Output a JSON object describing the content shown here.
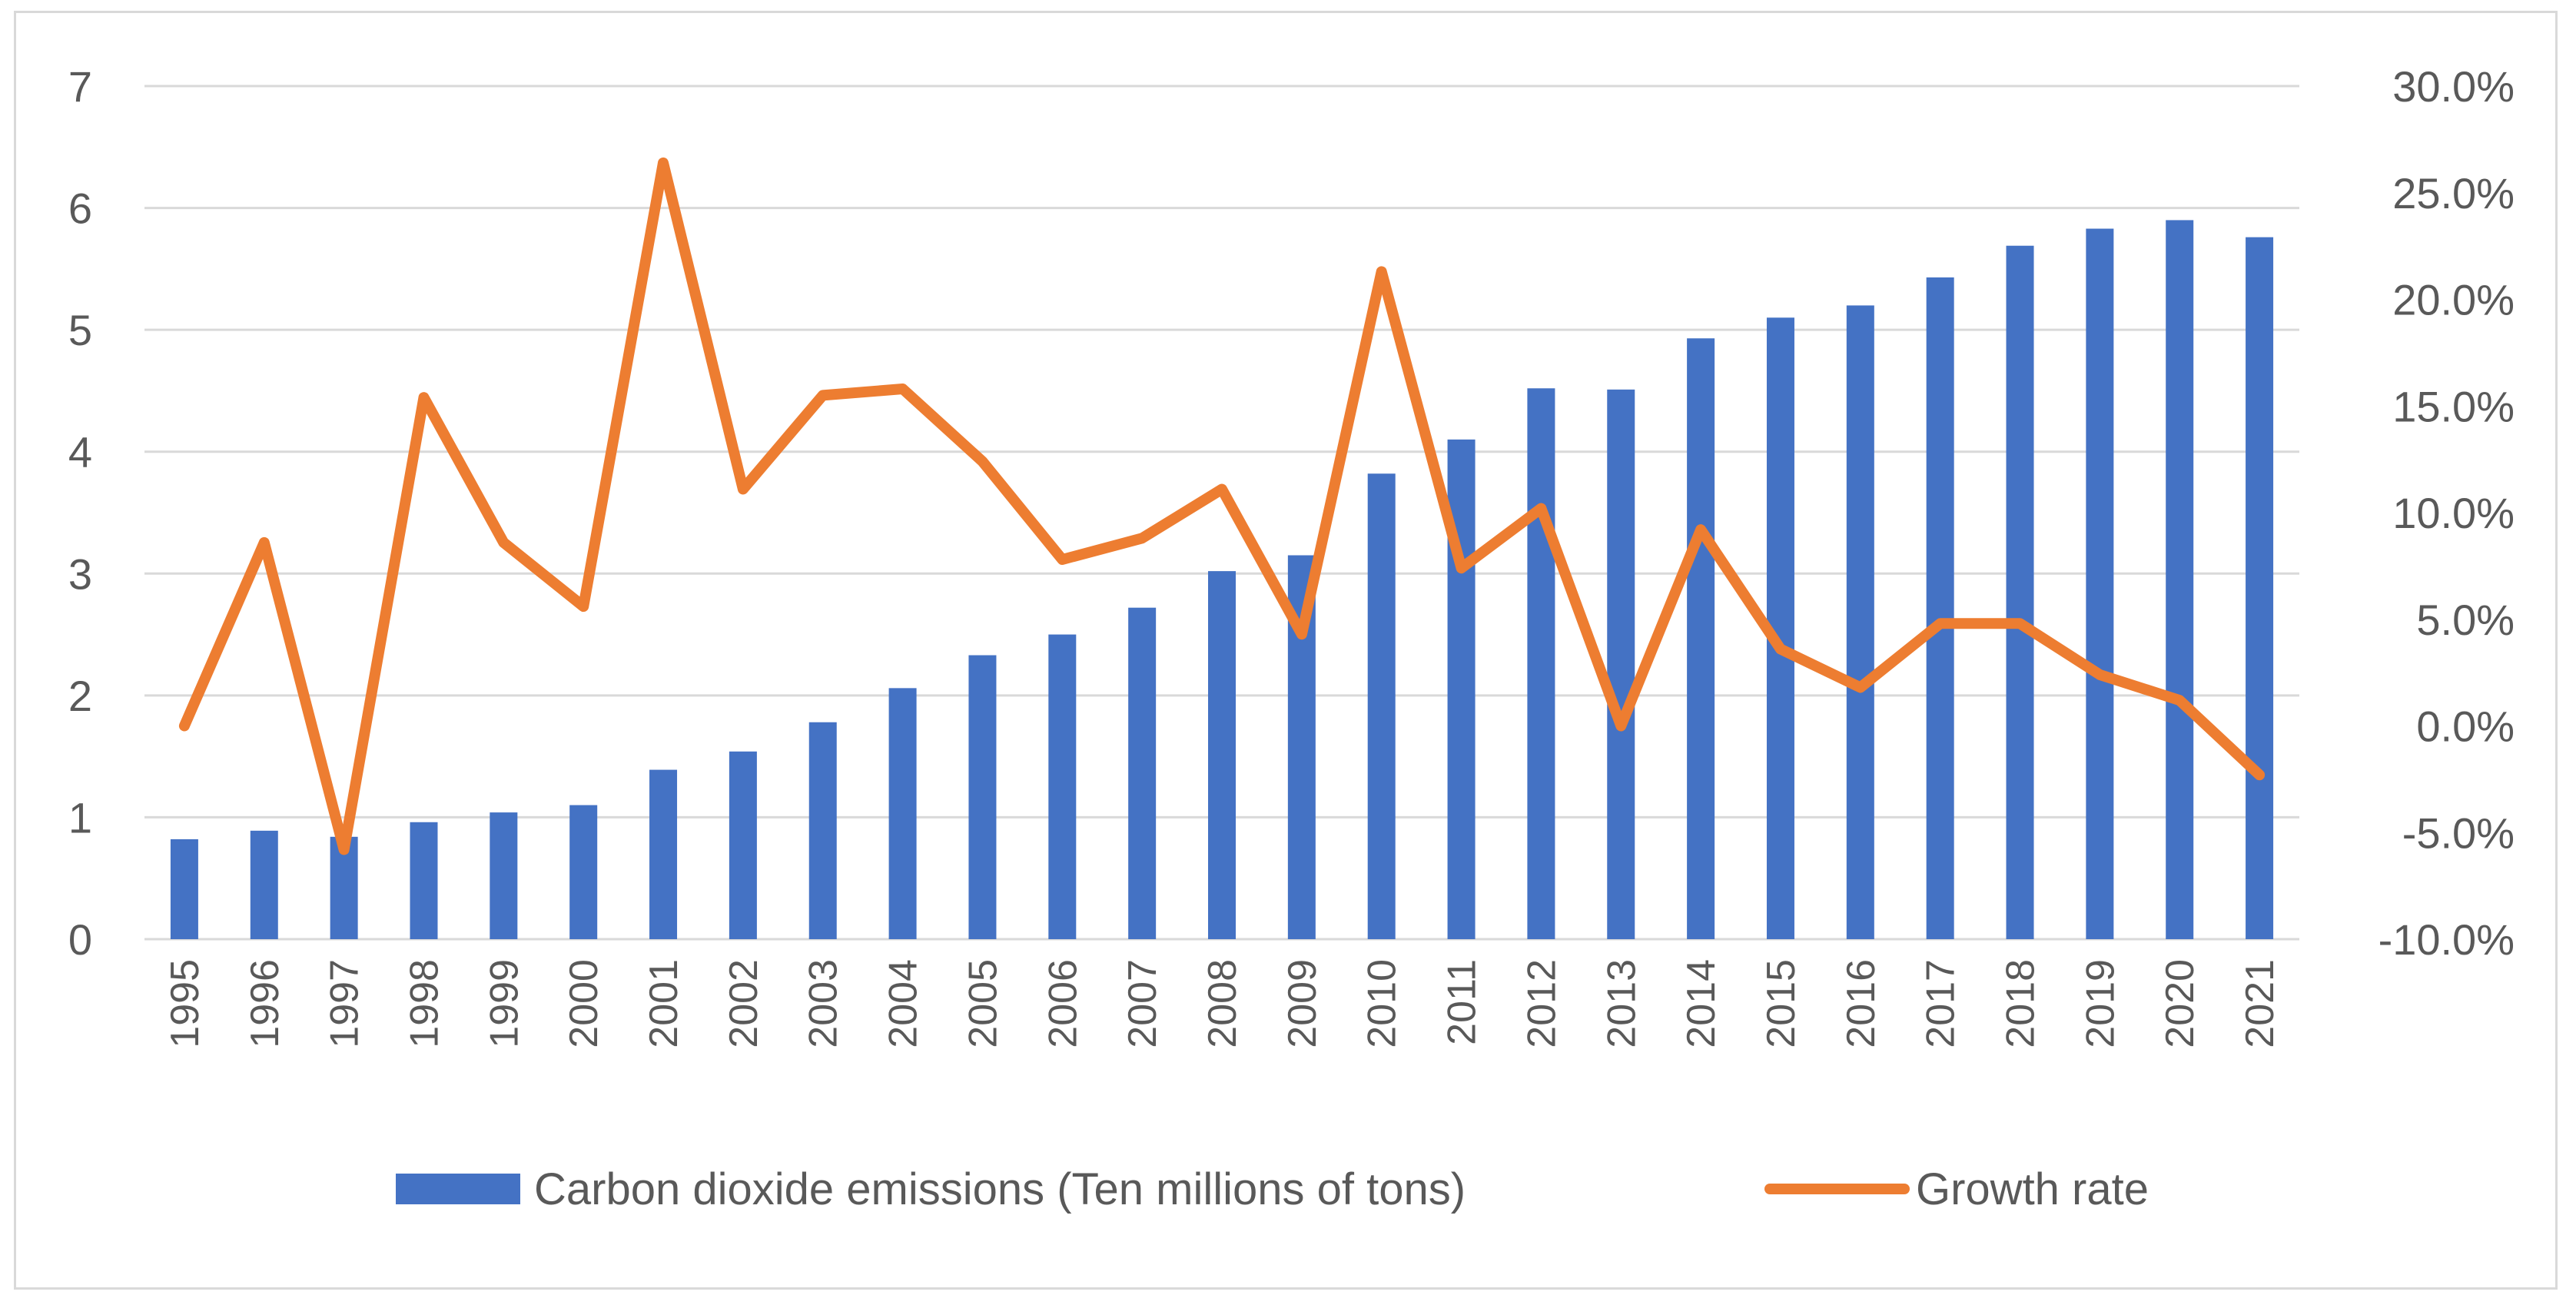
{
  "chart_data": {
    "type": "bar+line",
    "categories": [
      "1995",
      "1996",
      "1997",
      "1998",
      "1999",
      "2000",
      "2001",
      "2002",
      "2003",
      "2004",
      "2005",
      "2006",
      "2007",
      "2008",
      "2009",
      "2010",
      "2011",
      "2012",
      "2013",
      "2014",
      "2015",
      "2016",
      "2017",
      "2018",
      "2019",
      "2020",
      "2021"
    ],
    "series": [
      {
        "name": "Carbon dioxide emissions (Ten millions of tons)",
        "type": "bar",
        "axis": "left",
        "color": "#4472c4",
        "values": [
          0.82,
          0.89,
          0.84,
          0.96,
          1.04,
          1.1,
          1.39,
          1.54,
          1.78,
          2.06,
          2.33,
          2.5,
          2.72,
          3.02,
          3.15,
          3.82,
          4.1,
          4.52,
          4.51,
          4.93,
          5.1,
          5.2,
          5.43,
          5.69,
          5.83,
          5.9,
          5.76
        ]
      },
      {
        "name": "Growth rate",
        "type": "line",
        "axis": "right",
        "color": "#ed7d31",
        "values": [
          0.0,
          8.6,
          -5.8,
          15.4,
          8.6,
          5.6,
          26.4,
          11.1,
          15.5,
          15.8,
          12.4,
          7.8,
          8.8,
          11.1,
          4.3,
          21.3,
          7.4,
          10.2,
          0.0,
          9.2,
          3.6,
          1.8,
          4.8,
          4.8,
          2.4,
          1.2,
          -2.3
        ]
      }
    ],
    "y_left": {
      "min": 0,
      "max": 7,
      "ticks": [
        "0",
        "1",
        "2",
        "3",
        "4",
        "5",
        "6",
        "7"
      ]
    },
    "y_right": {
      "min": -10,
      "max": 30,
      "ticks": [
        "-10.0%",
        "-5.0%",
        "0.0%",
        "5.0%",
        "10.0%",
        "15.0%",
        "20.0%",
        "25.0%",
        "30.0%"
      ]
    },
    "grid": true,
    "legend_position": "bottom",
    "title": "",
    "xlabel": "",
    "ylabel": ""
  }
}
